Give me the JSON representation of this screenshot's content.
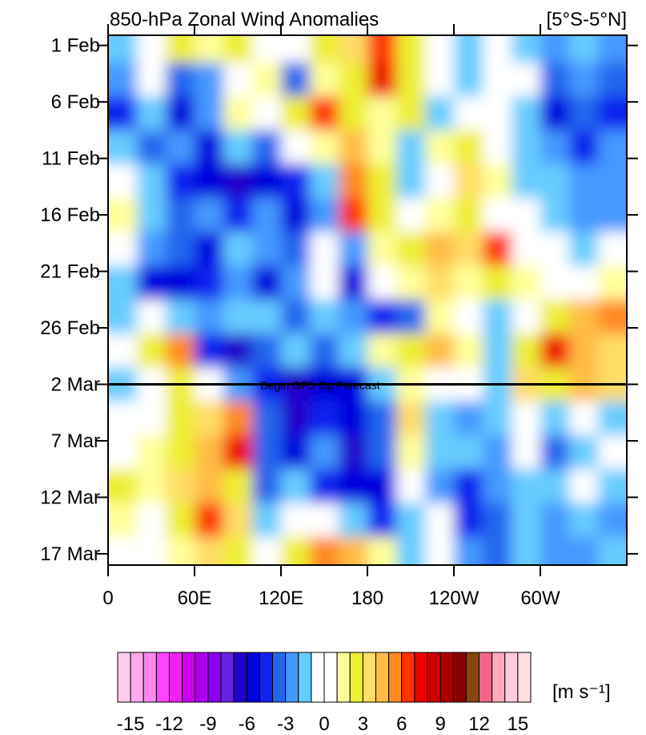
{
  "chart_data": {
    "type": "heatmap",
    "title": "850-hPa Zonal Wind Anomalies",
    "subtitle": "[5°S-5°N]",
    "x": [
      10,
      30,
      50,
      70,
      90,
      110,
      130,
      150,
      170,
      190,
      210,
      230,
      250,
      270,
      290,
      310,
      330,
      350
    ],
    "y": [
      0,
      3,
      6,
      9,
      12,
      15,
      18,
      21,
      24,
      27,
      30,
      33,
      36,
      39,
      42,
      45
    ],
    "z": [
      [
        -2,
        0,
        2,
        1,
        2,
        0,
        -1,
        2,
        3,
        6,
        2,
        0,
        -2,
        -1,
        -2,
        -3,
        -2,
        -3
      ],
      [
        -3,
        -1,
        -4,
        -3,
        0,
        1,
        -4,
        1,
        2,
        7,
        2,
        -1,
        -2,
        0,
        -1,
        -4,
        -3,
        -4
      ],
      [
        -5,
        -2,
        -6,
        -3,
        1,
        -1,
        2,
        6,
        2,
        1,
        2,
        -2,
        -1,
        -1,
        -2,
        -6,
        -4,
        -5
      ],
      [
        -2,
        -4,
        -3,
        -6,
        -2,
        -4,
        -1,
        1,
        4,
        1,
        -2,
        1,
        2,
        0,
        -2,
        -3,
        -5,
        -3
      ],
      [
        -1,
        -2,
        -5,
        -6,
        -7,
        -6,
        -5,
        -2,
        5,
        2,
        -2,
        -1,
        3,
        1,
        -2,
        -2,
        -3,
        -3
      ],
      [
        1,
        -2,
        -4,
        -3,
        -5,
        -3,
        -6,
        -3,
        6,
        2,
        -1,
        1,
        2,
        0,
        -1,
        -2,
        -3,
        -3
      ],
      [
        -1,
        -3,
        -4,
        -6,
        -2,
        -3,
        -4,
        -1,
        -3,
        1,
        2,
        4,
        3,
        6,
        -1,
        -1,
        -2,
        -1
      ],
      [
        -2,
        -6,
        -6,
        -5,
        -3,
        -6,
        -3,
        0,
        -6,
        -1,
        1,
        3,
        1,
        2,
        1,
        0,
        -1,
        1
      ],
      [
        -2,
        -1,
        -2,
        -3,
        -2,
        -2,
        -4,
        -2,
        -3,
        -5,
        -4,
        1,
        -1,
        -2,
        -1,
        2,
        4,
        5
      ],
      [
        -1,
        2,
        5,
        -5,
        -7,
        -4,
        -2,
        -4,
        -2,
        1,
        2,
        4,
        1,
        -2,
        2,
        7,
        4,
        3
      ],
      [
        -2,
        -1,
        2,
        -1,
        -3,
        -5,
        -7,
        -6,
        -6,
        -2,
        1,
        -1,
        -1,
        -2,
        3,
        2,
        4,
        3
      ],
      [
        -1,
        0,
        2,
        3,
        5,
        -4,
        -7,
        -5,
        -6,
        -4,
        3,
        -2,
        -3,
        -2,
        -1,
        -2,
        -1,
        -2
      ],
      [
        -1,
        1,
        2,
        4,
        7,
        -4,
        -6,
        -3,
        -7,
        -4,
        1,
        -2,
        -2,
        -3,
        -1,
        -4,
        -2,
        -1
      ],
      [
        2,
        1,
        3,
        4,
        2,
        -4,
        -2,
        -5,
        -6,
        -6,
        0,
        -3,
        -5,
        -3,
        -2,
        -2,
        -1,
        -2
      ],
      [
        1,
        0,
        2,
        6,
        3,
        -2,
        -1,
        -1,
        -2,
        -5,
        -2,
        -1,
        -5,
        -4,
        -2,
        -3,
        -2,
        -3
      ],
      [
        0,
        -1,
        1,
        3,
        2,
        0,
        2,
        5,
        4,
        1,
        -2,
        -1,
        -3,
        -4,
        -2,
        -3,
        -3,
        -2
      ]
    ],
    "xlim": [
      0,
      360
    ],
    "xticks": [
      0,
      {
        "value": 60,
        "label": "60E"
      },
      {
        "value": 120,
        "label": "120E"
      },
      180,
      {
        "value": 240,
        "label": "120W"
      },
      {
        "value": 300,
        "label": "60W"
      }
    ],
    "ylim": [
      -0.9,
      46
    ],
    "yticks": [
      {
        "value": 0,
        "label": "1 Feb"
      },
      {
        "value": 5,
        "label": "6 Feb"
      },
      {
        "value": 10,
        "label": "11 Feb"
      },
      {
        "value": 15,
        "label": "16 Feb"
      },
      {
        "value": 20,
        "label": "21 Feb"
      },
      {
        "value": 25,
        "label": "26 Feb"
      },
      {
        "value": 30,
        "label": "2 Mar"
      },
      {
        "value": 35,
        "label": "7 Mar"
      },
      {
        "value": 40,
        "label": "12 Mar"
      },
      {
        "value": 45,
        "label": "17 Mar"
      }
    ],
    "annotation": {
      "text": "Begin GFS Op Forecast",
      "y": 30
    },
    "colorbar": {
      "bounds": [
        -16,
        16
      ],
      "colors": [
        "#ffccee",
        "#ffaaee",
        "#ff88ee",
        "#ff44ff",
        "#ee22ee",
        "#cc00ee",
        "#aa00ee",
        "#8800ee",
        "#6622dd",
        "#2200cc",
        "#0000dd",
        "#1122ee",
        "#2266ee",
        "#4499ff",
        "#66ccff",
        "#ffffff",
        "#ffffff",
        "#ffff99",
        "#eeee33",
        "#ffdd66",
        "#ffbb44",
        "#ff8822",
        "#ff3300",
        "#ee0000",
        "#cc0000",
        "#aa0000",
        "#880000",
        "#884411",
        "#ee6688",
        "#ffaabb",
        "#ffccdd",
        "#ffe0e0"
      ],
      "ticks": [
        -15,
        -12,
        -9,
        -6,
        -3,
        0,
        3,
        6,
        9,
        12,
        15
      ],
      "label": "[m s⁻¹]"
    }
  }
}
